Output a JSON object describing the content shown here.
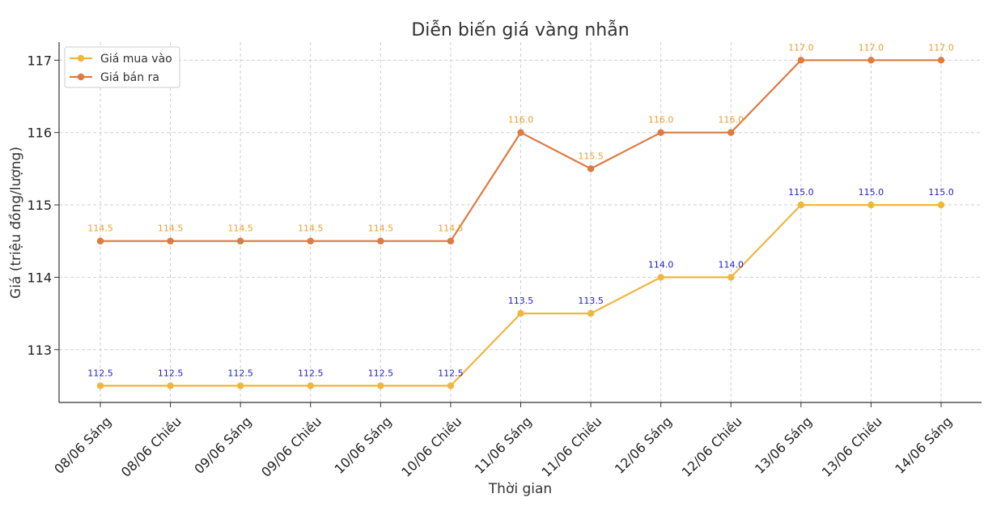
{
  "chart_data": {
    "type": "line",
    "title": "Diễn biến giá vàng nhẫn",
    "xlabel": "Thời gian",
    "ylabel": "Giá (triệu đồng/lượng)",
    "categories": [
      "08/06 Sáng",
      "08/06 Chiều",
      "09/06 Sáng",
      "09/06 Chiều",
      "10/06 Sáng",
      "10/06 Chiều",
      "11/06 Sáng",
      "11/06 Chiều",
      "12/06 Sáng",
      "12/06 Chiều",
      "13/06 Sáng",
      "13/06 Chiều",
      "14/06 Sáng"
    ],
    "yticks": [
      "113",
      "114",
      "115",
      "116",
      "117"
    ],
    "ylim": [
      112.27,
      117.25
    ],
    "grid": true,
    "legend_position": "top-left",
    "series": [
      {
        "name": "Giá mua vào",
        "color": "#F0B63F",
        "label_color": "#1F1FC8",
        "values": [
          112.5,
          112.5,
          112.5,
          112.5,
          112.5,
          112.5,
          113.5,
          113.5,
          114.0,
          114.0,
          115.0,
          115.0,
          115.0
        ],
        "labels": [
          "112.5",
          "112.5",
          "112.5",
          "112.5",
          "112.5",
          "112.5",
          "113.5",
          "113.5",
          "114.0",
          "114.0",
          "115.0",
          "115.0",
          "115.0"
        ]
      },
      {
        "name": "Giá bán ra",
        "color": "#DF7A41",
        "label_color": "#E8A030",
        "values": [
          114.5,
          114.5,
          114.5,
          114.5,
          114.5,
          114.5,
          116.0,
          115.5,
          116.0,
          116.0,
          117.0,
          117.0,
          117.0
        ],
        "labels": [
          "114.5",
          "114.5",
          "114.5",
          "114.5",
          "114.5",
          "114.5",
          "116.0",
          "115.5",
          "116.0",
          "116.0",
          "117.0",
          "117.0",
          "117.0"
        ]
      }
    ]
  }
}
